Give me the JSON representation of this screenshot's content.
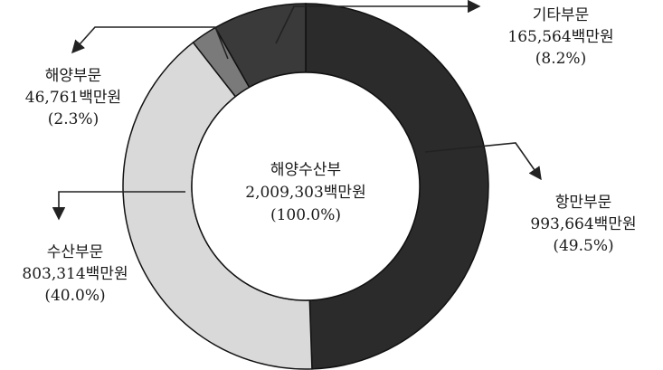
{
  "chart_data": {
    "type": "pie",
    "variant": "donut",
    "total": {
      "name": "해양수산부",
      "value_text": "2,009,303백만원",
      "pct_text": "(100.0%)",
      "value": 2009303
    },
    "slices": [
      {
        "name": "항만부문",
        "value": 993664,
        "value_text": "993,664백만원",
        "pct": 49.5,
        "pct_text": "(49.5%)",
        "color": "#2b2b2b"
      },
      {
        "name": "수산부문",
        "value": 803314,
        "value_text": "803,314백만원",
        "pct": 40.0,
        "pct_text": "(40.0%)",
        "color": "#d9d9d9"
      },
      {
        "name": "해양부문",
        "value": 46761,
        "value_text": "46,761백만원",
        "pct": 2.3,
        "pct_text": "(2.3%)",
        "color": "#7a7a7a"
      },
      {
        "name": "기타부문",
        "value": 165564,
        "value_text": "165,564백만원",
        "pct": 8.2,
        "pct_text": "(8.2%)",
        "color": "#3a3a3a"
      }
    ]
  }
}
